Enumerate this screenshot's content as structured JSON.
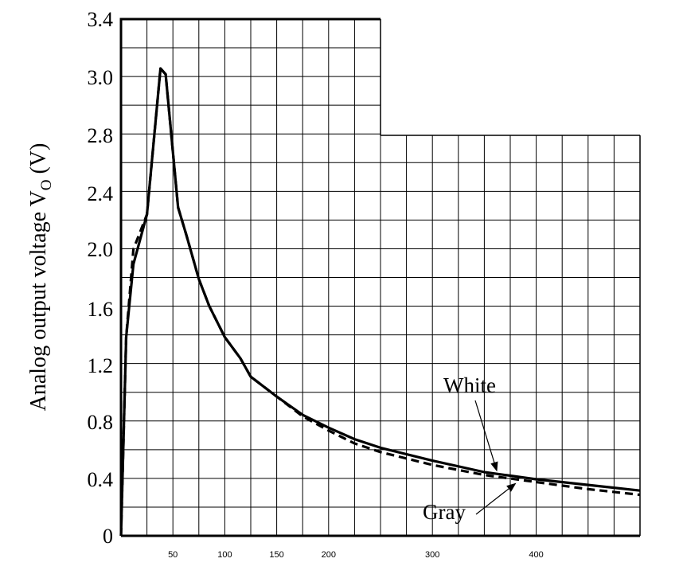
{
  "chart_data": {
    "type": "line",
    "title": "",
    "xlabel": "",
    "ylabel": "Analog output voltage V",
    "ylabel_subscript": "O",
    "ylabel_unit": " (V)",
    "xlim": [
      0,
      500
    ],
    "ylim": [
      0,
      3.4
    ],
    "grid": true,
    "x_ticks": [
      {
        "value": 50,
        "label": "50"
      },
      {
        "value": 100,
        "label": "100"
      },
      {
        "value": 150,
        "label": "150"
      },
      {
        "value": 200,
        "label": "200"
      },
      {
        "value": 300,
        "label": "300"
      },
      {
        "value": 400,
        "label": "400"
      }
    ],
    "y_ticks": [
      {
        "value": 0,
        "label": "0"
      },
      {
        "value": 0.4,
        "label": "0.4"
      },
      {
        "value": 0.8,
        "label": "0.8"
      },
      {
        "value": 1.2,
        "label": "1.2"
      },
      {
        "value": 1.6,
        "label": "1.6"
      },
      {
        "value": 2.0,
        "label": "2.0"
      },
      {
        "value": 2.4,
        "label": "2.4"
      },
      {
        "value": 2.8,
        "label": "2.8"
      },
      {
        "value": 3.0,
        "label": "3.0"
      },
      {
        "value": 3.4,
        "label": "3.4"
      }
    ],
    "series": [
      {
        "name": "White",
        "style": "solid",
        "color": "#000000",
        "x": [
          0,
          5,
          12,
          25,
          38,
          43,
          55,
          63,
          75,
          85,
          100,
          115,
          125,
          150,
          175,
          200,
          225,
          250,
          300,
          350,
          400,
          450,
          500
        ],
        "y": [
          0,
          1.4,
          1.9,
          2.25,
          3.06,
          3.02,
          2.3,
          2.1,
          1.8,
          1.62,
          1.4,
          1.25,
          1.12,
          0.98,
          0.85,
          0.76,
          0.68,
          0.62,
          0.53,
          0.45,
          0.4,
          0.36,
          0.32
        ]
      },
      {
        "name": "Gray",
        "style": "dashed",
        "color": "#000000",
        "x": [
          0,
          5,
          12,
          25,
          38,
          43,
          55,
          63,
          75,
          85,
          100,
          115,
          125,
          150,
          175,
          200,
          225,
          250,
          300,
          350,
          400,
          450,
          500
        ],
        "y": [
          0,
          1.4,
          2.0,
          2.25,
          3.06,
          3.02,
          2.3,
          2.1,
          1.8,
          1.62,
          1.4,
          1.25,
          1.12,
          0.98,
          0.84,
          0.74,
          0.65,
          0.59,
          0.5,
          0.43,
          0.38,
          0.33,
          0.29
        ]
      }
    ],
    "annotations": [
      {
        "text": "White",
        "series": "White",
        "x": 362,
        "y": 0.46
      },
      {
        "text": "Gray",
        "series": "Gray",
        "x": 380,
        "y": 0.37
      }
    ]
  }
}
